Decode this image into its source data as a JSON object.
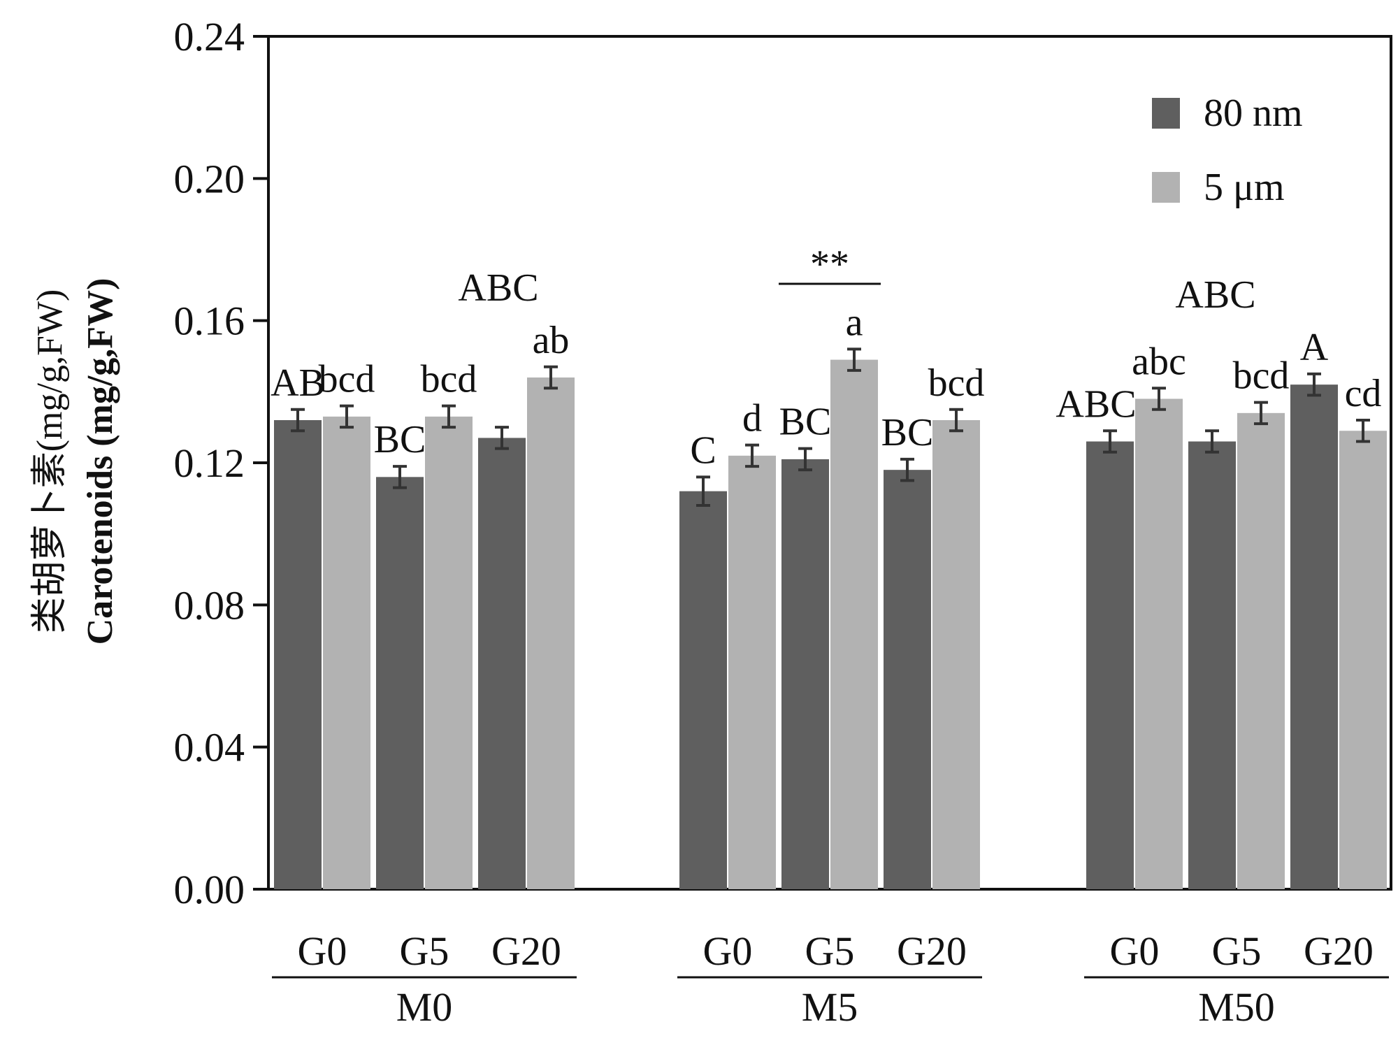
{
  "chart_data": {
    "type": "bar",
    "title": "",
    "ylabel_cn": "类胡萝卜素(mg/g,FW)",
    "ylabel_en": "Carotenoids (mg/g,FW)",
    "ylim": [
      0,
      0.24
    ],
    "yticks": [
      "0.00",
      "0.04",
      "0.08",
      "0.12",
      "0.16",
      "0.20",
      "0.24"
    ],
    "legend": [
      {
        "name": "80 nm",
        "color": "#5f5f5f"
      },
      {
        "name": "5 μm",
        "color": "#b2b2b2"
      }
    ],
    "groups": [
      {
        "name": "M0",
        "annotation": "ABC",
        "subgroups": [
          {
            "name": "G0",
            "values": [
              0.132,
              0.133
            ],
            "errors": [
              0.003,
              0.003
            ],
            "labels": [
              "AB",
              "bcd"
            ]
          },
          {
            "name": "G5",
            "values": [
              0.116,
              0.133
            ],
            "errors": [
              0.003,
              0.003
            ],
            "labels": [
              "BC",
              "bcd"
            ]
          },
          {
            "name": "G20",
            "values": [
              0.127,
              0.144
            ],
            "errors": [
              0.003,
              0.003
            ],
            "labels": [
              "",
              "ab"
            ]
          }
        ]
      },
      {
        "name": "M5",
        "annotation": "",
        "subgroups": [
          {
            "name": "G0",
            "values": [
              0.112,
              0.122
            ],
            "errors": [
              0.004,
              0.003
            ],
            "labels": [
              "C",
              "d"
            ]
          },
          {
            "name": "G5",
            "values": [
              0.121,
              0.149
            ],
            "errors": [
              0.003,
              0.003
            ],
            "labels": [
              "BC",
              "a"
            ]
          },
          {
            "name": "G20",
            "values": [
              0.118,
              0.132
            ],
            "errors": [
              0.003,
              0.003
            ],
            "labels": [
              "BC",
              "bcd"
            ]
          }
        ]
      },
      {
        "name": "M50",
        "annotation": "ABC",
        "subgroups": [
          {
            "name": "G0",
            "values": [
              0.126,
              0.138
            ],
            "errors": [
              0.003,
              0.003
            ],
            "labels": [
              "ABC",
              "abc"
            ]
          },
          {
            "name": "G5",
            "values": [
              0.126,
              0.134
            ],
            "errors": [
              0.003,
              0.003
            ],
            "labels": [
              "",
              "bcd"
            ]
          },
          {
            "name": "G20",
            "values": [
              0.142,
              0.129
            ],
            "errors": [
              0.003,
              0.003
            ],
            "labels": [
              "A",
              "cd"
            ]
          }
        ]
      }
    ],
    "significance": {
      "label": "**",
      "group": "M5",
      "subgroup": "G5"
    }
  }
}
